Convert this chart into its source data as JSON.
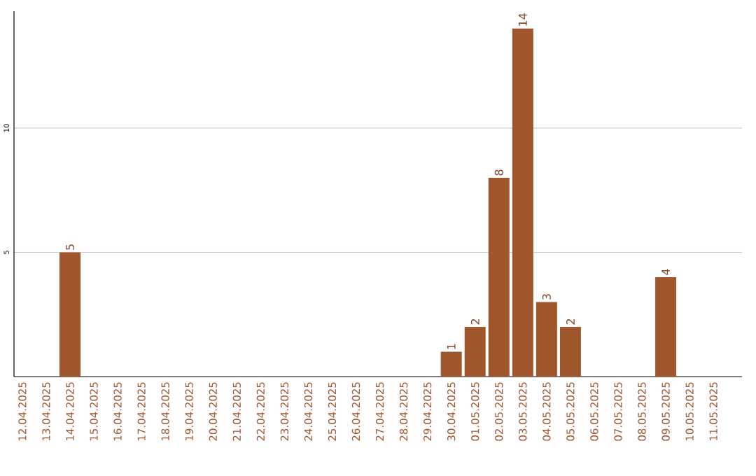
{
  "chart_data": {
    "type": "bar",
    "categories": [
      "12.04.2025",
      "13.04.2025",
      "14.04.2025",
      "15.04.2025",
      "16.04.2025",
      "17.04.2025",
      "18.04.2025",
      "19.04.2025",
      "20.04.2025",
      "21.04.2025",
      "22.04.2025",
      "23.04.2025",
      "24.04.2025",
      "25.04.2025",
      "26.04.2025",
      "27.04.2025",
      "28.04.2025",
      "29.04.2025",
      "30.04.2025",
      "01.05.2025",
      "02.05.2025",
      "03.05.2025",
      "04.05.2025",
      "05.05.2025",
      "06.05.2025",
      "07.05.2025",
      "08.05.2025",
      "09.05.2025",
      "10.05.2025",
      "11.05.2025"
    ],
    "values": [
      0,
      0,
      5,
      0,
      0,
      0,
      0,
      0,
      0,
      0,
      0,
      0,
      0,
      0,
      0,
      0,
      0,
      0,
      1,
      2,
      8,
      14,
      3,
      2,
      0,
      0,
      0,
      4,
      0,
      0
    ],
    "value_labels": [
      null,
      null,
      "5",
      null,
      null,
      null,
      null,
      null,
      null,
      null,
      null,
      null,
      null,
      null,
      null,
      null,
      null,
      null,
      "1",
      "2",
      "8",
      "14",
      "3",
      "2",
      null,
      null,
      null,
      "4",
      null,
      null
    ],
    "color": "#a0562c",
    "ylim": [
      0,
      14.7
    ],
    "yticks": [
      5,
      10
    ],
    "grid": "y"
  }
}
